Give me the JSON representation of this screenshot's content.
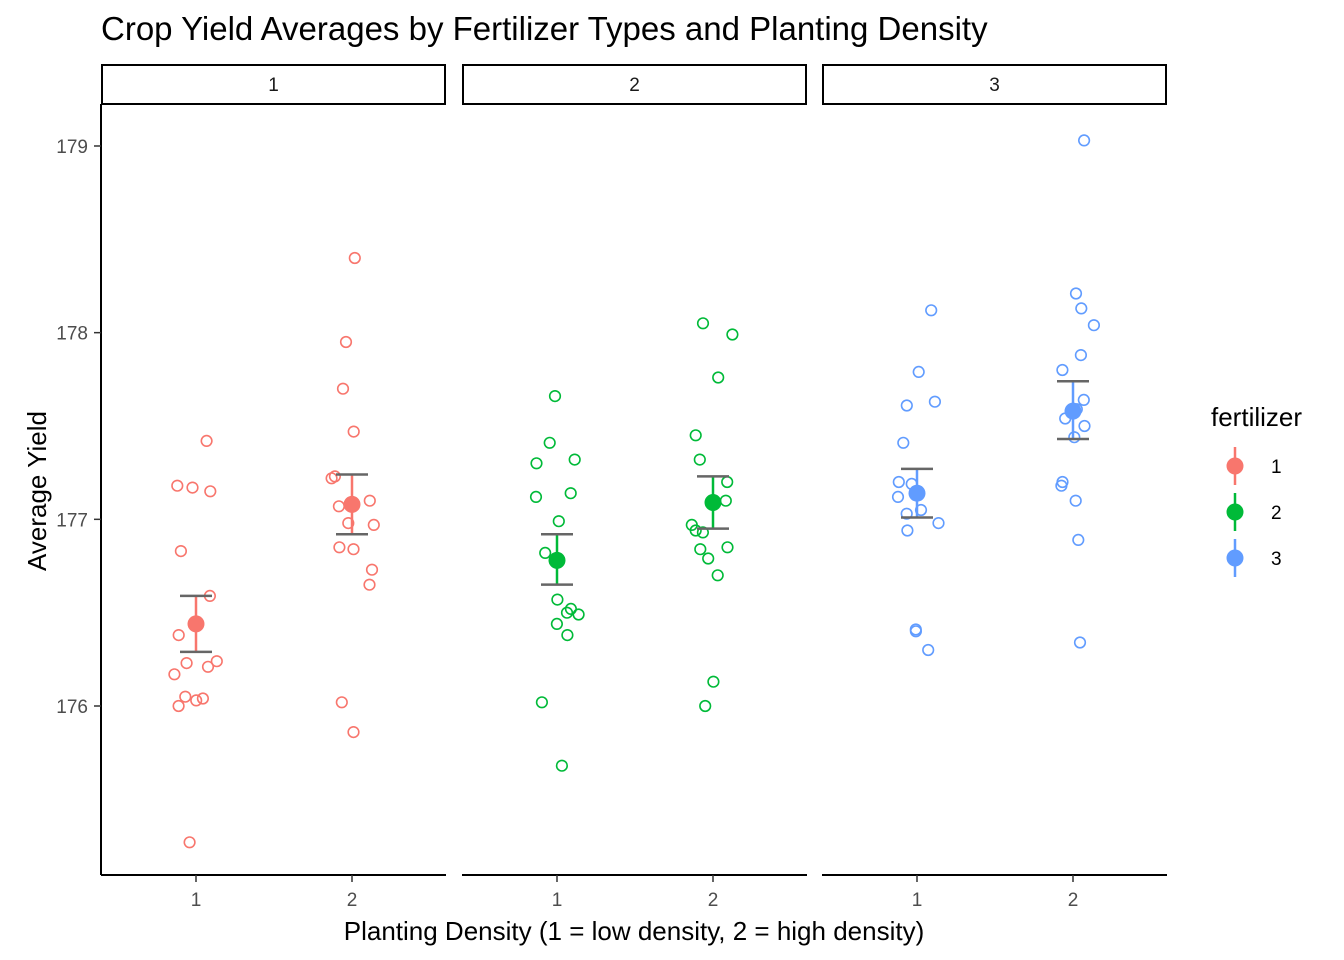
{
  "chart_data": {
    "type": "scatter",
    "title": "Crop Yield Averages by Fertilizer Types and Planting Density",
    "xlabel": "Planting Density (1 = low density, 2 = high density)",
    "ylabel": "Average Yield",
    "facet_variable": "fertilizer",
    "facets": [
      "1",
      "2",
      "3"
    ],
    "x_categories": [
      "1",
      "2"
    ],
    "ylim": [
      175.1,
      179.25
    ],
    "y_ticks": [
      176,
      177,
      178,
      179
    ],
    "grid": false,
    "legend": {
      "title": "fertilizer",
      "position": "right",
      "entries": [
        {
          "label": "1",
          "color": "#F8766D"
        },
        {
          "label": "2",
          "color": "#00BA38"
        },
        {
          "label": "3",
          "color": "#619CFF"
        }
      ]
    },
    "error_bar_color": "#666666",
    "panels": [
      {
        "facet": "1",
        "color": "#F8766D",
        "groups": [
          {
            "density": "1",
            "mean": 176.44,
            "lower": 176.29,
            "upper": 176.59,
            "points": [
              177.42,
              177.18,
              177.17,
              177.15,
              176.83,
              176.59,
              176.38,
              176.24,
              176.23,
              176.21,
              176.17,
              176.05,
              176.04,
              176.03,
              176.0,
              175.27
            ]
          },
          {
            "density": "2",
            "mean": 177.08,
            "lower": 176.92,
            "upper": 177.24,
            "points": [
              178.4,
              177.95,
              177.7,
              177.47,
              177.23,
              177.22,
              177.1,
              177.07,
              176.98,
              176.97,
              176.85,
              176.84,
              176.73,
              176.65,
              176.02,
              175.86
            ]
          }
        ]
      },
      {
        "facet": "2",
        "color": "#00BA38",
        "groups": [
          {
            "density": "1",
            "mean": 176.78,
            "lower": 176.65,
            "upper": 176.92,
            "points": [
              177.66,
              177.41,
              177.32,
              177.3,
              177.14,
              177.12,
              176.99,
              176.82,
              176.57,
              176.52,
              176.5,
              176.49,
              176.44,
              176.38,
              176.02,
              175.68
            ]
          },
          {
            "density": "2",
            "mean": 177.09,
            "lower": 176.95,
            "upper": 177.23,
            "points": [
              178.05,
              177.99,
              177.76,
              177.45,
              177.32,
              177.2,
              177.1,
              176.97,
              176.94,
              176.93,
              176.85,
              176.84,
              176.79,
              176.7,
              176.13,
              176.0
            ]
          }
        ]
      },
      {
        "facet": "3",
        "color": "#619CFF",
        "groups": [
          {
            "density": "1",
            "mean": 177.14,
            "lower": 177.01,
            "upper": 177.27,
            "points": [
              178.12,
              177.79,
              177.63,
              177.61,
              177.41,
              177.2,
              177.19,
              177.12,
              177.05,
              177.03,
              176.98,
              176.94,
              176.41,
              176.4,
              176.3
            ]
          },
          {
            "density": "2",
            "mean": 177.58,
            "lower": 177.43,
            "upper": 177.74,
            "points": [
              179.03,
              178.21,
              178.13,
              178.04,
              177.88,
              177.8,
              177.64,
              177.59,
              177.54,
              177.5,
              177.44,
              177.2,
              177.18,
              177.1,
              176.89,
              176.34
            ]
          }
        ]
      }
    ]
  }
}
